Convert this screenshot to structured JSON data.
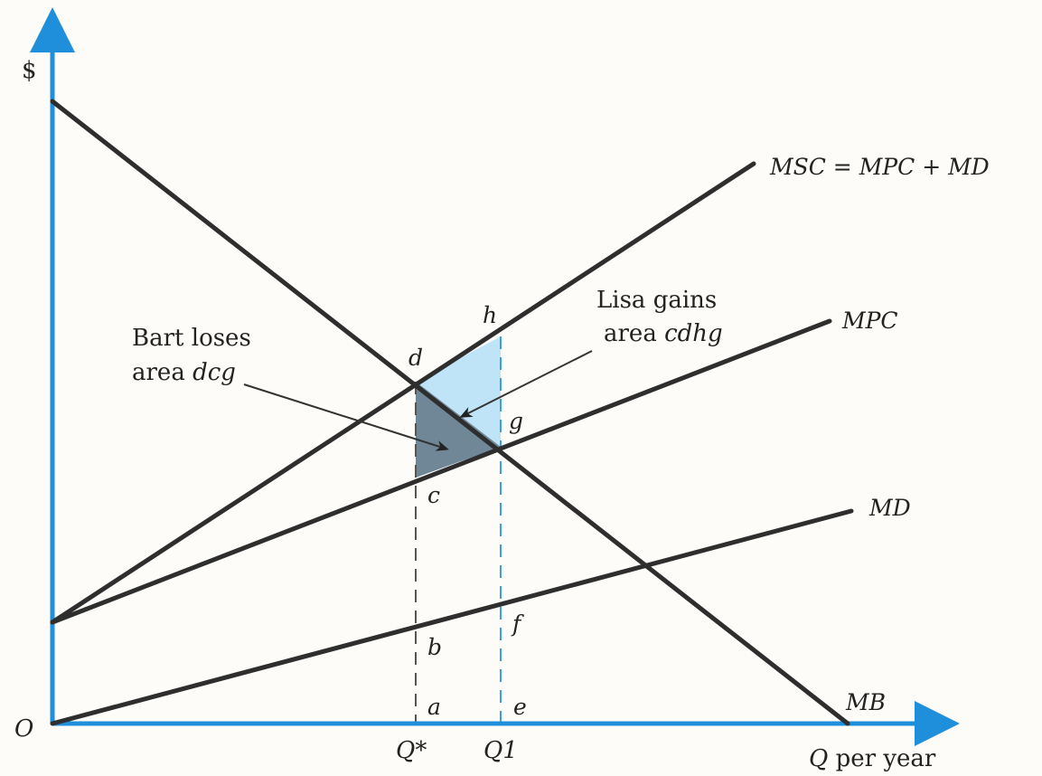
{
  "axes": {
    "y_label": "$",
    "origin_label": "O",
    "x_label": "Q per year",
    "ticks": {
      "q_star": "Q*",
      "q1": "Q1"
    }
  },
  "curves": {
    "msc": "MSC = MPC + MD",
    "mpc": "MPC",
    "md": "MD",
    "mb": "MB"
  },
  "points": {
    "a": "a",
    "b": "b",
    "c": "c",
    "d": "d",
    "e": "e",
    "f": "f",
    "g": "g",
    "h": "h"
  },
  "annotations": {
    "bart_line1": "Bart loses",
    "bart_line2_prefix": "area ",
    "bart_line2_area": "dcg",
    "lisa_line1": "Lisa gains",
    "lisa_line2_prefix": "area ",
    "lisa_line2_area": "cdhg"
  },
  "colors": {
    "axis": "#1f8fdc",
    "curve": "#2e2e2e",
    "lisa_area": "#bfe3f7",
    "bart_area": "#6f8797"
  }
}
